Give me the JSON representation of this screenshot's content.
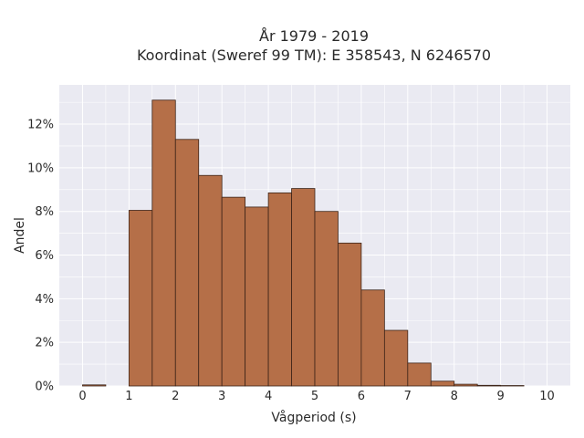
{
  "chart_data": {
    "type": "bar",
    "title_lines": [
      "År 1979 - 2019",
      "Koordinat (Sweref 99 TM): E 358543, N 6246570"
    ],
    "xlabel": "Vågperiod (s)",
    "ylabel": "Andel",
    "bin_width": 0.5,
    "bin_starts": [
      0,
      1,
      1.5,
      2,
      2.5,
      3,
      3.5,
      4,
      4.5,
      5,
      5.5,
      6,
      6.5,
      7,
      7.5,
      8,
      8.5,
      9
    ],
    "values": [
      0.05,
      8.05,
      13.1,
      11.3,
      9.65,
      8.65,
      8.2,
      8.85,
      9.05,
      8.0,
      6.55,
      4.4,
      2.55,
      1.05,
      0.22,
      0.08,
      0.03,
      0.02
    ],
    "xlim": [
      -0.5,
      10.5
    ],
    "ylim": [
      0,
      13.8
    ],
    "xticks": [
      "0",
      "1",
      "2",
      "3",
      "4",
      "5",
      "6",
      "7",
      "8",
      "9",
      "10"
    ],
    "yticks": [
      "0%",
      "2%",
      "4%",
      "6%",
      "8%",
      "10%",
      "12%"
    ],
    "grid": true,
    "colors": {
      "bar_fill": "#b56f48",
      "bar_stroke": "#3d2418",
      "plot_bg": "#eaeaf2",
      "grid": "#ffffff"
    }
  }
}
